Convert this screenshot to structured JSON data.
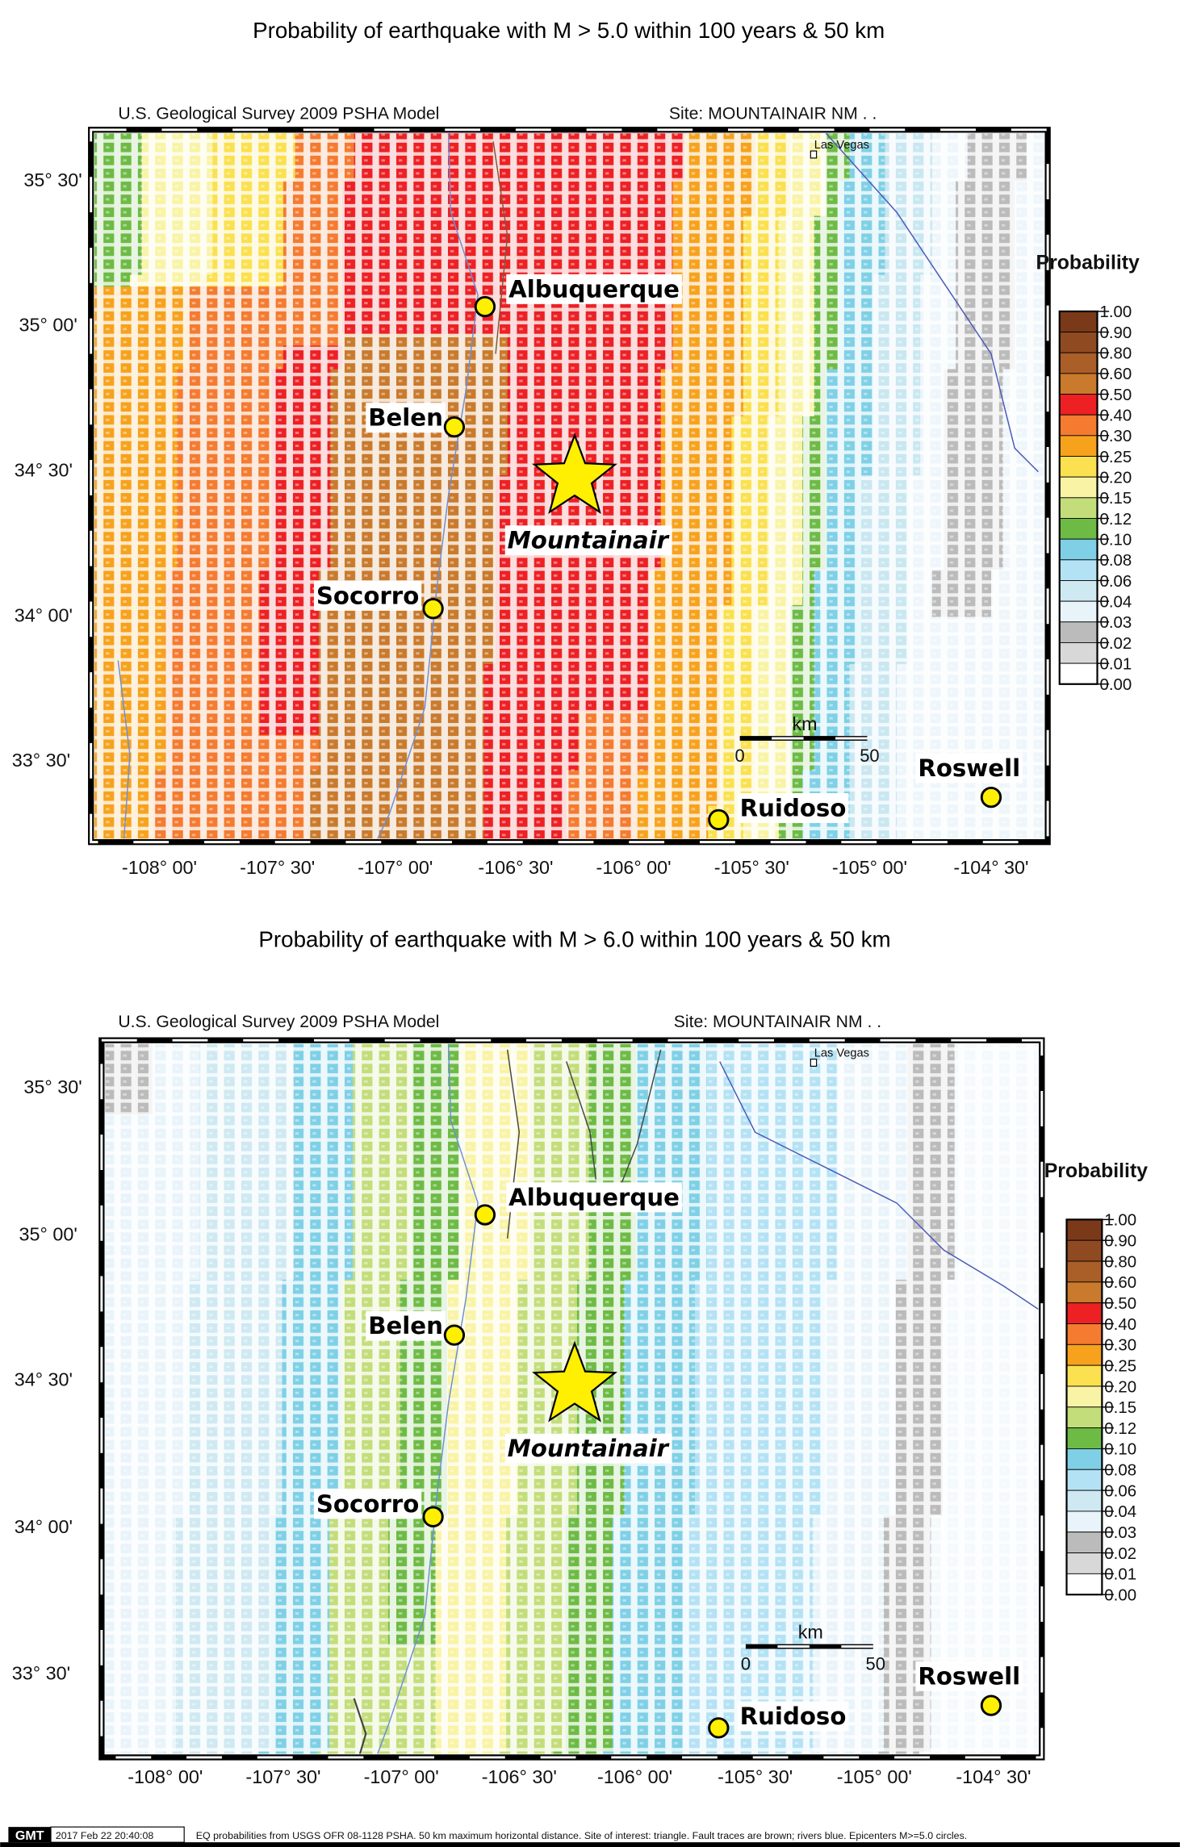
{
  "maps": [
    {
      "title": "Probability of earthquake with M > 5.0 within 100 years & 50 km",
      "model": "U.S. Geological Survey 2009 PSHA Model",
      "site": "Site: MOUNTAINAIR  NM . .",
      "legend_title": "Probability"
    },
    {
      "title": "Probability of earthquake with M > 6.0 within 100 years & 50 km",
      "model": "U.S. Geological Survey 2009 PSHA Model",
      "site": "Site: MOUNTAINAIR  NM . .",
      "legend_title": "Probability"
    }
  ],
  "legend": {
    "labels": [
      "1.00",
      "0.90",
      "0.80",
      "0.60",
      "0.50",
      "0.40",
      "0.30",
      "0.25",
      "0.20",
      "0.15",
      "0.12",
      "0.10",
      "0.08",
      "0.06",
      "0.04",
      "0.03",
      "0.02",
      "0.01",
      "0.00"
    ],
    "colors": [
      "#7a3a1a",
      "#8f4a22",
      "#aa5e28",
      "#c97a2c",
      "#ed2024",
      "#f47b30",
      "#f7a21d",
      "#fbe04f",
      "#f9f3a6",
      "#c3dd7a",
      "#6dbb45",
      "#7fd0e6",
      "#b4e2f5",
      "#cfe9f2",
      "#e8f4fa",
      "#bbbbbb",
      "#d8d8d8",
      "#ffffff"
    ]
  },
  "lat_labels": [
    "35° 30'",
    "35° 00'",
    "34° 30'",
    "34° 00'",
    "33° 30'"
  ],
  "lon_labels": [
    "-108° 00'",
    "-107° 30'",
    "-107° 00'",
    "-106° 30'",
    "-106° 00'",
    "-105° 30'",
    "-105° 00'",
    "-104° 30'"
  ],
  "cities": {
    "albuquerque": "Albuquerque",
    "belen": "Belen",
    "socorro": "Socorro",
    "ruidoso": "Ruidoso",
    "roswell": "Roswell",
    "las_vegas": "Las Vegas",
    "site": "Mountainair"
  },
  "scale_bar": {
    "unit": "km",
    "start": "0",
    "end": "50"
  },
  "footer": {
    "logo": "GMT",
    "timestamp": "2017 Feb 22 20:40:08",
    "note": "EQ probabilities from USGS OFR 08-1128 PSHA. 50 km maximum horizontal distance. Site of interest: triangle. Fault traces are brown; rivers blue. Epicenters M>=5.0 circles."
  }
}
